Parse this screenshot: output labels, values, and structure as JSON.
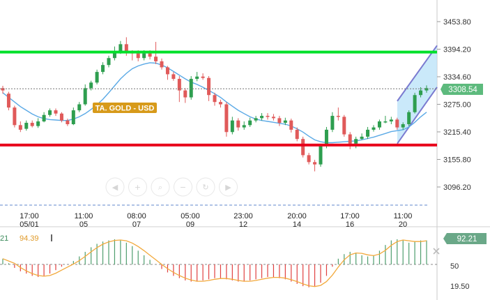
{
  "colors": {
    "up": "#2e9e4f",
    "down": "#e05a5a",
    "resistance": "#00e02a",
    "support": "#e8001c",
    "ma": "#5aa9e6",
    "channel_fill": "#b8e2f8",
    "channel_line": "#7a7ad0",
    "price_tag": "#5dba7d",
    "osc_tag": "#6aa888",
    "osc_line": "#f2a93b",
    "label_bg": "#d79a1a"
  },
  "instrument_label": "TA. GOLD - USD",
  "price_tag": "3308.54",
  "osc": {
    "left_values": [
      "21",
      "94.39"
    ],
    "tag": "92.21",
    "level_label": "50",
    "low_label": "19.50"
  },
  "icons": [
    "arrow-left-icon",
    "zoom-in-icon",
    "magnify-icon",
    "zoom-out-icon",
    "reset-icon",
    "arrow-right-icon"
  ],
  "chart_data": {
    "type": "candlestick",
    "title": "TA. GOLD - USD",
    "ylim": [
      3096.2,
      3453.8
    ],
    "y_ticks": [
      "3453.80",
      "3394.20",
      "3334.60",
      "3275.00",
      "3215.40",
      "3155.80",
      "3096.20"
    ],
    "x_ticks": [
      {
        "time": "17:00",
        "date": "05/01"
      },
      {
        "time": "11:00",
        "date": "05"
      },
      {
        "time": "08:00",
        "date": "07"
      },
      {
        "time": "05:00",
        "date": "09"
      },
      {
        "time": "23:00",
        "date": "12"
      },
      {
        "time": "20:00",
        "date": "14"
      },
      {
        "time": "17:00",
        "date": "16"
      },
      {
        "time": "11:00",
        "date": "20"
      }
    ],
    "resistance": 3388,
    "support": 3187,
    "last_price": 3308.54,
    "candles": [
      [
        3310,
        3305,
        3315,
        3298
      ],
      [
        3298,
        3268,
        3302,
        3262
      ],
      [
        3268,
        3230,
        3272,
        3225
      ],
      [
        3230,
        3220,
        3238,
        3215
      ],
      [
        3222,
        3235,
        3240,
        3218
      ],
      [
        3235,
        3228,
        3240,
        3225
      ],
      [
        3228,
        3238,
        3245,
        3224
      ],
      [
        3238,
        3252,
        3258,
        3236
      ],
      [
        3252,
        3262,
        3266,
        3248
      ],
      [
        3262,
        3255,
        3266,
        3250
      ],
      [
        3255,
        3240,
        3258,
        3236
      ],
      [
        3240,
        3232,
        3244,
        3228
      ],
      [
        3232,
        3262,
        3268,
        3230
      ],
      [
        3262,
        3275,
        3280,
        3258
      ],
      [
        3275,
        3310,
        3318,
        3272
      ],
      [
        3310,
        3322,
        3326,
        3305
      ],
      [
        3322,
        3345,
        3350,
        3318
      ],
      [
        3345,
        3360,
        3366,
        3340
      ],
      [
        3360,
        3375,
        3380,
        3355
      ],
      [
        3375,
        3388,
        3400,
        3370
      ],
      [
        3388,
        3405,
        3412,
        3384
      ],
      [
        3405,
        3388,
        3420,
        3380
      ],
      [
        3388,
        3385,
        3392,
        3370
      ],
      [
        3385,
        3375,
        3392,
        3368
      ],
      [
        3375,
        3385,
        3392,
        3370
      ],
      [
        3385,
        3378,
        3392,
        3372
      ],
      [
        3378,
        3368,
        3410,
        3362
      ],
      [
        3368,
        3355,
        3374,
        3350
      ],
      [
        3355,
        3340,
        3358,
        3328
      ],
      [
        3340,
        3330,
        3345,
        3326
      ],
      [
        3330,
        3305,
        3336,
        3280
      ],
      [
        3305,
        3290,
        3310,
        3278
      ],
      [
        3290,
        3330,
        3336,
        3285
      ],
      [
        3330,
        3335,
        3345,
        3325
      ],
      [
        3335,
        3332,
        3342,
        3328
      ],
      [
        3332,
        3295,
        3336,
        3282
      ],
      [
        3295,
        3280,
        3300,
        3272
      ],
      [
        3280,
        3275,
        3285,
        3268
      ],
      [
        3275,
        3215,
        3280,
        3205
      ],
      [
        3215,
        3240,
        3248,
        3210
      ],
      [
        3240,
        3225,
        3245,
        3218
      ],
      [
        3225,
        3230,
        3238,
        3220
      ],
      [
        3230,
        3240,
        3246,
        3226
      ],
      [
        3240,
        3245,
        3250,
        3236
      ],
      [
        3245,
        3250,
        3256,
        3240
      ],
      [
        3250,
        3248,
        3256,
        3242
      ],
      [
        3248,
        3245,
        3254,
        3240
      ],
      [
        3245,
        3235,
        3250,
        3228
      ],
      [
        3235,
        3240,
        3246,
        3230
      ],
      [
        3240,
        3220,
        3244,
        3214
      ],
      [
        3220,
        3200,
        3225,
        3195
      ],
      [
        3200,
        3165,
        3205,
        3160
      ],
      [
        3165,
        3150,
        3170,
        3145
      ],
      [
        3150,
        3145,
        3155,
        3130
      ],
      [
        3145,
        3185,
        3190,
        3140
      ],
      [
        3185,
        3220,
        3226,
        3180
      ],
      [
        3220,
        3250,
        3258,
        3215
      ],
      [
        3250,
        3248,
        3268,
        3240
      ],
      [
        3248,
        3210,
        3252,
        3205
      ],
      [
        3210,
        3190,
        3215,
        3178
      ],
      [
        3190,
        3200,
        3205,
        3180
      ],
      [
        3200,
        3205,
        3212,
        3198
      ],
      [
        3205,
        3220,
        3226,
        3200
      ],
      [
        3220,
        3225,
        3230,
        3216
      ],
      [
        3225,
        3238,
        3242,
        3220
      ],
      [
        3238,
        3238,
        3250,
        3234
      ],
      [
        3238,
        3242,
        3248,
        3232
      ],
      [
        3242,
        3225,
        3246,
        3220
      ],
      [
        3225,
        3232,
        3236,
        3220
      ],
      [
        3232,
        3258,
        3262,
        3228
      ],
      [
        3258,
        3295,
        3300,
        3255
      ],
      [
        3295,
        3305,
        3312,
        3290
      ],
      [
        3305,
        3310,
        3316,
        3300
      ]
    ],
    "ma": [
      3300,
      3290,
      3280,
      3270,
      3262,
      3254,
      3248,
      3244,
      3242,
      3241,
      3240,
      3240,
      3243,
      3248,
      3255,
      3264,
      3274,
      3286,
      3300,
      3315,
      3330,
      3342,
      3352,
      3358,
      3362,
      3365,
      3364,
      3360,
      3354,
      3346,
      3338,
      3330,
      3323,
      3318,
      3312,
      3305,
      3298,
      3290,
      3280,
      3271,
      3262,
      3255,
      3248,
      3243,
      3240,
      3238,
      3236,
      3234,
      3232,
      3228,
      3222,
      3215,
      3206,
      3198,
      3194,
      3192,
      3192,
      3193,
      3194,
      3195,
      3196,
      3198,
      3201,
      3204,
      3208,
      3212,
      3216,
      3218,
      3220,
      3226,
      3236,
      3248,
      3258
    ],
    "oscillator": [
      60,
      52,
      44,
      38,
      34,
      30,
      28,
      30,
      34,
      40,
      46,
      50,
      56,
      64,
      72,
      80,
      86,
      90,
      92,
      94,
      92,
      88,
      82,
      74,
      66,
      58,
      50,
      42,
      36,
      30,
      26,
      22,
      20,
      20,
      22,
      24,
      26,
      26,
      24,
      22,
      20,
      20,
      22,
      24,
      26,
      28,
      28,
      26,
      24,
      20,
      16,
      12,
      10,
      12,
      18,
      30,
      46,
      60,
      68,
      72,
      70,
      66,
      64,
      66,
      74,
      84,
      92,
      94,
      92,
      88,
      90,
      92,
      92
    ]
  }
}
